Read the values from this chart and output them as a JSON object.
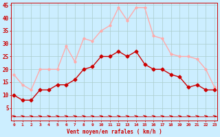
{
  "hours": [
    0,
    1,
    2,
    3,
    4,
    5,
    6,
    7,
    8,
    9,
    10,
    11,
    12,
    13,
    14,
    15,
    16,
    17,
    18,
    19,
    20,
    21,
    22,
    23
  ],
  "wind_avg": [
    10,
    8,
    8,
    12,
    12,
    14,
    14,
    16,
    20,
    21,
    25,
    25,
    27,
    25,
    27,
    22,
    20,
    20,
    18,
    17,
    13,
    14,
    12,
    12
  ],
  "wind_gust": [
    18,
    14,
    12,
    20,
    20,
    20,
    29,
    23,
    32,
    31,
    35,
    37,
    44,
    39,
    44,
    44,
    33,
    32,
    26,
    25,
    25,
    24,
    20,
    13
  ],
  "wind_avg_color": "#cc0000",
  "wind_gust_color": "#ffaaaa",
  "background_color": "#cceeff",
  "grid_color": "#aacccc",
  "axis_label_color": "#cc0000",
  "tick_color": "#cc0000",
  "xlabel": "Vent moyen/en rafales ( km/h )",
  "ylim": [
    0,
    46
  ],
  "yticks": [
    5,
    10,
    15,
    20,
    25,
    30,
    35,
    40,
    45
  ],
  "marker_avg": "D",
  "marker_gust": "o",
  "marker_size_avg": 2.5,
  "marker_size_gust": 2.0,
  "linewidth": 1.0
}
